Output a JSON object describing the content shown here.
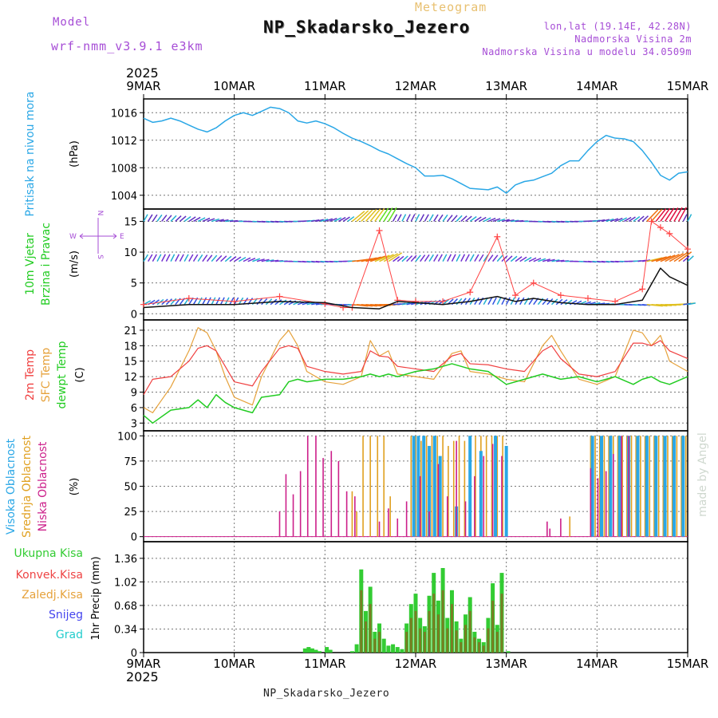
{
  "header": {
    "model_label": "Model",
    "model_name": "wrf-nmm_v3.9.1 e3km",
    "meteogram_label": "Meteogram",
    "station": "NP_Skadarsko_Jezero",
    "lonlat": "lon,lat (19.14E, 42.28N)",
    "elevation": "Nadmorska Visina 2m",
    "model_elevation": "Nadmorska Visina u modelu 34.0509m"
  },
  "footer": {
    "station": "NP_Skadarsko_Jezero",
    "watermark": "made by Angel"
  },
  "time_axis": {
    "year": "2025",
    "ticks": [
      "9MAR",
      "10MAR",
      "11MAR",
      "12MAR",
      "13MAR",
      "14MAR",
      "15MAR"
    ]
  },
  "colors": {
    "pressure": "#2aa7e6",
    "temp2m": "#f04040",
    "sfc": "#e6a23c",
    "dewpt": "#22cc22",
    "high_cloud": "#2aa7e6",
    "mid_cloud": "#e0a020",
    "low_cloud": "#cc1f8a",
    "total_precip": "#33cc33",
    "conv_precip": "#ee4444",
    "snow": "#4444ee",
    "grad": "#22cccc",
    "purple": "#a64dd6"
  },
  "chart_data": [
    {
      "type": "line",
      "id": "pressure",
      "ylabel_left": "Pritisak na nivou mora",
      "ylabel_unit": "(hPa)",
      "ylim": [
        1002,
        1018
      ],
      "yticks": [
        "1004",
        "1008",
        "1012",
        "1016"
      ],
      "series": [
        {
          "name": "Pritisak na nivou mora",
          "x": [
            0,
            0.1,
            0.2,
            0.3,
            0.4,
            0.5,
            0.6,
            0.7,
            0.8,
            0.9,
            1.0,
            1.1,
            1.2,
            1.3,
            1.4,
            1.5,
            1.6,
            1.7,
            1.8,
            1.9,
            2.0,
            2.1,
            2.2,
            2.3,
            2.4,
            2.5,
            2.6,
            2.7,
            2.8,
            2.9,
            3.0,
            3.1,
            3.2,
            3.3,
            3.4,
            3.5,
            3.6,
            3.7,
            3.8,
            3.9,
            4.0,
            4.1,
            4.2,
            4.3,
            4.4,
            4.5,
            4.6,
            4.7,
            4.8,
            4.9,
            5.0,
            5.1,
            5.2,
            5.3,
            5.4,
            5.5,
            5.6,
            5.7,
            5.8,
            5.9,
            6.0
          ],
          "values": [
            1015.2,
            1014.6,
            1014.8,
            1015.2,
            1014.8,
            1014.2,
            1013.6,
            1013.2,
            1013.8,
            1014.8,
            1015.6,
            1016.0,
            1015.6,
            1016.2,
            1016.8,
            1016.6,
            1016.0,
            1014.8,
            1014.5,
            1014.8,
            1014.4,
            1013.8,
            1013.0,
            1012.3,
            1011.8,
            1011.2,
            1010.5,
            1010.0,
            1009.3,
            1008.6,
            1008.0,
            1006.8,
            1006.8,
            1006.9,
            1006.4,
            1005.7,
            1005.0,
            1004.9,
            1004.8,
            1005.2,
            1004.3,
            1005.5,
            1006.0,
            1006.2,
            1006.7,
            1007.2,
            1008.3,
            1009.0,
            1009.0,
            1010.5,
            1011.8,
            1012.7,
            1012.3,
            1012.2,
            1011.8,
            1010.5,
            1008.8,
            1006.9,
            1006.2,
            1007.2,
            1007.4
          ]
        }
      ]
    },
    {
      "type": "line",
      "id": "wind",
      "ylabel_left": [
        "10m Vjetar",
        "Brzina i Pravac"
      ],
      "ylabel_unit": "(m/s)",
      "compass": {
        "n": "N",
        "w": "W",
        "e": "E",
        "s": "S"
      },
      "ylim": [
        -1,
        17
      ],
      "yticks": [
        "0",
        "5",
        "10",
        "15"
      ],
      "series": [
        {
          "name": "10m Vjetar Brzina",
          "color": "#111111",
          "x": [
            0,
            0.5,
            1.0,
            1.5,
            2.0,
            2.3,
            2.6,
            2.8,
            3.0,
            3.3,
            3.6,
            3.9,
            4.1,
            4.3,
            4.6,
            4.9,
            5.2,
            5.5,
            5.7,
            5.8,
            6.0
          ],
          "values": [
            1.0,
            1.5,
            1.5,
            2.0,
            1.8,
            1.0,
            0.8,
            2.0,
            1.8,
            1.5,
            2.0,
            2.8,
            2.0,
            2.5,
            1.8,
            1.5,
            1.5,
            2.2,
            7.4,
            6.0,
            4.6
          ]
        },
        {
          "name": "10m Vjetar Udari",
          "color": "#ff4444",
          "x": [
            0,
            0.5,
            1.0,
            1.5,
            2.0,
            2.2,
            2.3,
            2.6,
            2.8,
            3.0,
            3.3,
            3.6,
            3.9,
            4.1,
            4.3,
            4.6,
            4.9,
            5.2,
            5.5,
            5.6,
            5.7,
            5.8,
            6.0
          ],
          "values": [
            1.5,
            2.5,
            2.0,
            2.8,
            1.6,
            1.0,
            1.0,
            13.5,
            2.2,
            2.0,
            2.0,
            3.5,
            12.5,
            3.0,
            5.0,
            3.0,
            2.5,
            2.0,
            4.0,
            15.0,
            14.0,
            13.0,
            10.5
          ]
        }
      ]
    },
    {
      "type": "line",
      "id": "temperature",
      "ylabel_left": [
        "2m Temp",
        "SFC Temp",
        "dewpt Temp"
      ],
      "ylabel_unit": "(C)",
      "ylim": [
        1.5,
        23
      ],
      "yticks": [
        "3",
        "6",
        "9",
        "12",
        "15",
        "18",
        "21"
      ],
      "series": [
        {
          "name": "2m Temp",
          "x": [
            0,
            0.1,
            0.3,
            0.5,
            0.6,
            0.7,
            0.8,
            0.9,
            1.0,
            1.2,
            1.3,
            1.5,
            1.6,
            1.7,
            1.8,
            2.0,
            2.2,
            2.4,
            2.5,
            2.6,
            2.7,
            2.8,
            3.0,
            3.2,
            3.4,
            3.5,
            3.6,
            3.8,
            4.0,
            4.2,
            4.4,
            4.5,
            4.6,
            4.8,
            5.0,
            5.2,
            5.4,
            5.5,
            5.6,
            5.7,
            5.8,
            6.0
          ],
          "values": [
            8.5,
            11.5,
            12.0,
            15.0,
            17.5,
            18.0,
            17.0,
            14.0,
            11.0,
            10.2,
            13.0,
            17.5,
            18.0,
            17.5,
            14.0,
            13.0,
            12.5,
            13.0,
            17.0,
            16.0,
            15.8,
            14.0,
            13.5,
            13.0,
            16.0,
            16.5,
            14.5,
            14.3,
            13.5,
            13.0,
            17.0,
            18.0,
            15.5,
            12.5,
            12.0,
            13.0,
            18.5,
            18.5,
            18.0,
            19.0,
            17.0,
            15.5
          ]
        },
        {
          "name": "SFC Temp",
          "x": [
            0,
            0.1,
            0.3,
            0.5,
            0.6,
            0.7,
            0.8,
            0.9,
            1.0,
            1.2,
            1.3,
            1.5,
            1.6,
            1.7,
            1.8,
            2.0,
            2.2,
            2.4,
            2.5,
            2.6,
            2.7,
            2.8,
            3.0,
            3.2,
            3.4,
            3.5,
            3.6,
            3.8,
            4.0,
            4.2,
            4.4,
            4.5,
            4.6,
            4.8,
            5.0,
            5.2,
            5.4,
            5.5,
            5.6,
            5.7,
            5.8,
            6.0
          ],
          "values": [
            6.0,
            5.0,
            10.0,
            17.0,
            21.5,
            20.5,
            17.0,
            12.0,
            8.0,
            6.5,
            12.0,
            19.0,
            21.0,
            18.0,
            13.0,
            11.0,
            10.5,
            12.0,
            19.0,
            16.0,
            17.0,
            12.5,
            12.0,
            11.5,
            16.5,
            17.0,
            13.0,
            12.5,
            11.5,
            11.0,
            18.0,
            20.0,
            17.0,
            11.5,
            10.5,
            12.0,
            21.0,
            20.5,
            18.0,
            20.0,
            15.0,
            13.0
          ]
        },
        {
          "name": "dewpt Temp",
          "x": [
            0,
            0.1,
            0.3,
            0.5,
            0.6,
            0.7,
            0.8,
            0.9,
            1.0,
            1.2,
            1.3,
            1.5,
            1.6,
            1.7,
            1.8,
            2.0,
            2.2,
            2.4,
            2.5,
            2.6,
            2.7,
            2.8,
            3.0,
            3.2,
            3.4,
            3.5,
            3.6,
            3.8,
            4.0,
            4.2,
            4.4,
            4.5,
            4.6,
            4.8,
            5.0,
            5.2,
            5.4,
            5.5,
            5.6,
            5.7,
            5.8,
            6.0
          ],
          "values": [
            4.5,
            3.0,
            5.5,
            6.0,
            7.5,
            6.0,
            8.5,
            7.0,
            6.0,
            5.0,
            8.0,
            8.5,
            11.0,
            11.5,
            11.0,
            11.5,
            11.5,
            12.0,
            12.5,
            12.0,
            12.5,
            12.0,
            13.0,
            13.5,
            14.5,
            14.0,
            13.5,
            13.0,
            10.5,
            11.5,
            12.5,
            12.0,
            11.5,
            12.0,
            11.0,
            12.0,
            10.5,
            11.5,
            12.0,
            11.0,
            10.5,
            12.0
          ]
        }
      ]
    },
    {
      "type": "bar",
      "id": "clouds",
      "ylabel_left": [
        "Visoka Oblacnost",
        "Srednja Oblacnost",
        "Niska Oblacnost"
      ],
      "ylabel_unit": "(%)",
      "ylim": [
        -5,
        105
      ],
      "yticks": [
        "0",
        "25",
        "50",
        "75",
        "100"
      ],
      "series": [
        {
          "name": "Visoka Oblacnost",
          "x": [
            2.98,
            3.03,
            3.09,
            3.15,
            3.21,
            3.27,
            3.45,
            3.6,
            3.72,
            3.88,
            4.0,
            4.95,
            5.05,
            5.15,
            5.25,
            5.35,
            5.45,
            5.55,
            5.65,
            5.75,
            5.85,
            5.95
          ],
          "values": [
            100,
            100,
            100,
            90,
            100,
            80,
            30,
            100,
            85,
            100,
            90,
            100,
            100,
            100,
            100,
            100,
            100,
            100,
            100,
            100,
            100,
            100
          ]
        },
        {
          "name": "Srednja Oblacnost",
          "x": [
            2.3,
            2.35,
            2.42,
            2.5,
            2.58,
            2.65,
            2.72,
            2.95,
            3.0,
            3.06,
            3.12,
            3.18,
            3.24,
            3.3,
            3.36,
            3.42,
            3.48,
            3.54,
            3.6,
            3.66,
            3.72,
            3.78,
            3.84,
            3.9,
            3.96,
            4.7,
            4.93,
            4.98,
            5.03,
            5.08,
            5.13,
            5.18,
            5.23,
            5.28,
            5.33,
            5.38,
            5.43,
            5.48,
            5.53,
            5.58,
            5.63,
            5.68,
            5.73,
            5.78,
            5.83,
            5.88,
            5.93,
            5.98
          ],
          "values": [
            45,
            25,
            100,
            100,
            100,
            100,
            40,
            100,
            100,
            95,
            100,
            100,
            100,
            100,
            90,
            95,
            100,
            95,
            100,
            100,
            100,
            100,
            100,
            100,
            100,
            20,
            100,
            100,
            100,
            100,
            100,
            100,
            100,
            100,
            100,
            100,
            100,
            100,
            100,
            100,
            100,
            100,
            100,
            100,
            100,
            100,
            100,
            100
          ]
        },
        {
          "name": "Niska Oblacnost",
          "x": [
            1.5,
            1.57,
            1.65,
            1.73,
            1.81,
            1.9,
            1.98,
            2.07,
            2.15,
            2.24,
            2.33,
            2.6,
            2.7,
            2.8,
            2.9,
            3.05,
            3.15,
            3.25,
            3.35,
            3.45,
            3.55,
            3.65,
            3.75,
            3.85,
            3.95,
            4.45,
            4.48,
            4.6,
            4.93,
            5.01,
            5.1,
            5.18,
            5.27,
            5.35
          ],
          "values": [
            25,
            62,
            42,
            65,
            100,
            100,
            78,
            85,
            75,
            45,
            40,
            15,
            28,
            18,
            35,
            60,
            25,
            72,
            40,
            95,
            35,
            60,
            80,
            92,
            80,
            15,
            8,
            18,
            68,
            58,
            65,
            82,
            100,
            100
          ]
        }
      ]
    },
    {
      "type": "bar",
      "id": "precipitation",
      "ylabel_unit": "1hr Precip (mm)",
      "legend": [
        "Ukupna Kisa",
        "Konvek.Kisa",
        "Zaledj.Kisa",
        "Snijeg",
        "Grad"
      ],
      "ylim": [
        0,
        1.6
      ],
      "yticks": [
        "0",
        "0.34",
        "0.68",
        "1.02",
        "1.36"
      ],
      "series": [
        {
          "name": "Ukupna Kisa",
          "x": [
            1.78,
            1.82,
            1.86,
            1.9,
            1.94,
            2.02,
            2.06,
            2.3,
            2.35,
            2.4,
            2.45,
            2.5,
            2.55,
            2.6,
            2.65,
            2.7,
            2.75,
            2.8,
            2.85,
            2.9,
            2.95,
            3.0,
            3.05,
            3.1,
            3.15,
            3.2,
            3.25,
            3.3,
            3.35,
            3.4,
            3.45,
            3.5,
            3.55,
            3.6,
            3.65,
            3.7,
            3.75,
            3.8,
            3.85,
            3.9,
            3.95,
            4.02
          ],
          "values": [
            0.06,
            0.08,
            0.06,
            0.04,
            0.02,
            0.08,
            0.04,
            0.02,
            0.12,
            1.2,
            0.6,
            0.95,
            0.3,
            0.42,
            0.2,
            0.1,
            0.12,
            0.08,
            0.05,
            0.42,
            0.7,
            0.85,
            0.5,
            0.38,
            0.82,
            1.15,
            0.75,
            1.22,
            0.5,
            0.9,
            0.45,
            0.2,
            0.55,
            0.8,
            0.3,
            0.2,
            0.15,
            0.5,
            1.0,
            0.4,
            1.15,
            0.02
          ]
        },
        {
          "name": "Konvek.Kisa",
          "x": [
            2.4,
            2.45,
            2.5,
            2.55,
            2.6,
            2.9,
            2.95,
            3.0,
            3.05,
            3.1,
            3.15,
            3.2,
            3.25,
            3.3,
            3.35,
            3.4,
            3.45,
            3.5,
            3.55,
            3.6,
            3.65,
            3.7,
            3.75,
            3.8,
            3.85,
            3.9,
            3.95
          ],
          "values": [
            0.9,
            0.45,
            0.7,
            0.2,
            0.3,
            0.3,
            0.5,
            0.6,
            0.35,
            0.3,
            0.6,
            0.85,
            0.55,
            0.9,
            0.35,
            0.7,
            0.32,
            0.15,
            0.4,
            0.6,
            0.22,
            0.15,
            0.1,
            0.35,
            0.75,
            0.3,
            0.85
          ]
        }
      ]
    }
  ]
}
